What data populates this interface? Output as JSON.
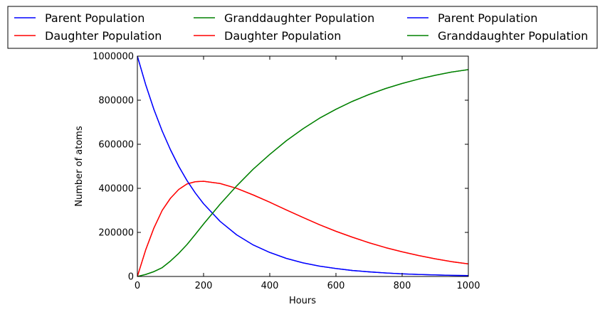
{
  "chart_data": {
    "type": "line",
    "title": "",
    "xlabel": "Hours",
    "ylabel": "Number of atoms",
    "xlim": [
      0,
      1000
    ],
    "ylim": [
      0,
      1000000
    ],
    "xticks": [
      0,
      200,
      400,
      600,
      800,
      1000
    ],
    "yticks": [
      0,
      200000,
      400000,
      600000,
      800000,
      1000000
    ],
    "xtick_labels": [
      "0",
      "200",
      "400",
      "600",
      "800",
      "1000"
    ],
    "ytick_labels": [
      "0",
      "200000",
      "400000",
      "600000",
      "800000",
      "1000000"
    ],
    "grid": false,
    "legend_placement": "top, above plot, 3 columns",
    "x": [
      0,
      25,
      50,
      75,
      100,
      125,
      150,
      175,
      200,
      250,
      300,
      350,
      400,
      450,
      500,
      550,
      600,
      650,
      700,
      750,
      800,
      850,
      900,
      950,
      1000
    ],
    "series": [
      {
        "name": "Parent Population",
        "color": "#0000ff",
        "values": [
          1000000,
          871000,
          758000,
          660000,
          575000,
          500000,
          435000,
          379000,
          330000,
          250000,
          189000,
          143000,
          109000,
          82000,
          62000,
          47000,
          36000,
          27000,
          21000,
          16000,
          12000,
          9000,
          7000,
          5000,
          4000
        ]
      },
      {
        "name": "Daughter Population",
        "color": "#ff0000",
        "values": [
          0,
          120000,
          220000,
          300000,
          355000,
          395000,
          420000,
          430000,
          432000,
          422000,
          400000,
          370000,
          337000,
          302000,
          268000,
          235000,
          205000,
          178000,
          153000,
          131000,
          112000,
          95000,
          80000,
          67000,
          57000
        ]
      },
      {
        "name": "Granddaughter Population",
        "color": "#008000",
        "values": [
          0,
          9000,
          22000,
          40000,
          70000,
          105000,
          145000,
          191000,
          238000,
          328000,
          411000,
          487000,
          554000,
          616000,
          670000,
          718000,
          759000,
          795000,
          826000,
          853000,
          876000,
          896000,
          913000,
          928000,
          939000
        ]
      },
      {
        "name": "Daughter Population",
        "color": "#ff0000",
        "values": [
          0,
          120000,
          220000,
          300000,
          355000,
          395000,
          420000,
          430000,
          432000,
          422000,
          400000,
          370000,
          337000,
          302000,
          268000,
          235000,
          205000,
          178000,
          153000,
          131000,
          112000,
          95000,
          80000,
          67000,
          57000
        ]
      },
      {
        "name": "Parent Population",
        "color": "#0000ff",
        "values": [
          1000000,
          871000,
          758000,
          660000,
          575000,
          500000,
          435000,
          379000,
          330000,
          250000,
          189000,
          143000,
          109000,
          82000,
          62000,
          47000,
          36000,
          27000,
          21000,
          16000,
          12000,
          9000,
          7000,
          5000,
          4000
        ]
      },
      {
        "name": "Granddaughter Population",
        "color": "#008000",
        "values": [
          0,
          9000,
          22000,
          40000,
          70000,
          105000,
          145000,
          191000,
          238000,
          328000,
          411000,
          487000,
          554000,
          616000,
          670000,
          718000,
          759000,
          795000,
          826000,
          853000,
          876000,
          896000,
          913000,
          928000,
          939000
        ]
      }
    ]
  }
}
